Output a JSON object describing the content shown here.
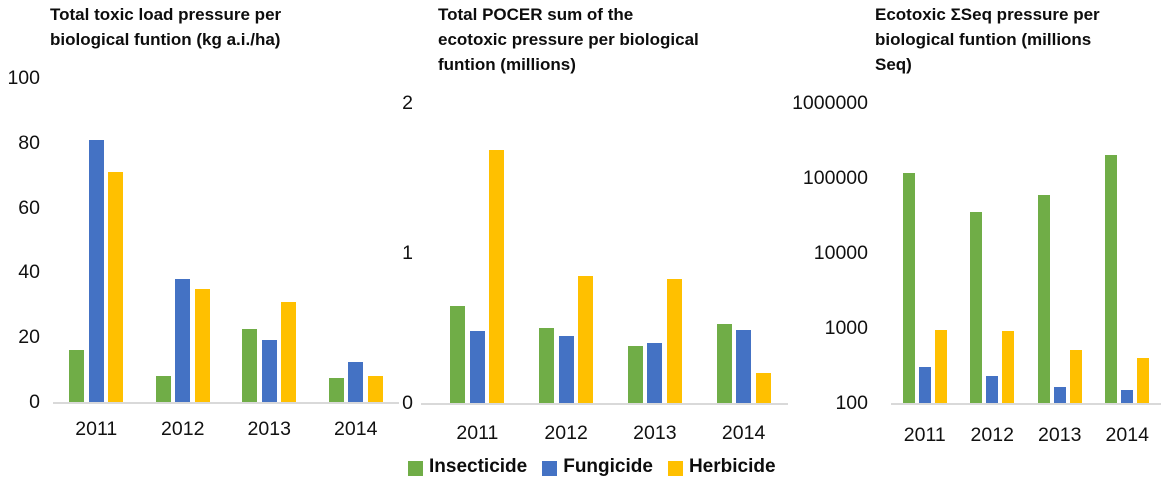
{
  "figure": {
    "background": "#ffffff",
    "text_color": "#111111",
    "axis_line_color": "#d9d9d9"
  },
  "legend": {
    "position": "bottom-center",
    "items": [
      {
        "label": "Insecticide",
        "color": "#70AD47"
      },
      {
        "label": "Fungicide",
        "color": "#4472C4"
      },
      {
        "label": "Herbicide",
        "color": "#FFC000"
      }
    ]
  },
  "chart_data": [
    {
      "type": "bar",
      "title": "Total toxic load pressure per\nbiological funtion (kg a.i./ha)",
      "categories": [
        "2011",
        "2012",
        "2013",
        "2014"
      ],
      "series": [
        {
          "name": "Insecticide",
          "color": "#70AD47",
          "values": [
            16,
            8,
            22.5,
            7.5
          ]
        },
        {
          "name": "Fungicide",
          "color": "#4472C4",
          "values": [
            81,
            38,
            19,
            12.5
          ]
        },
        {
          "name": "Herbicide",
          "color": "#FFC000",
          "values": [
            71,
            35,
            31,
            8
          ]
        }
      ],
      "y_scale": "linear",
      "ylim": [
        0,
        100
      ],
      "y_ticks": [
        0,
        20,
        40,
        60,
        80,
        100
      ],
      "grid": false,
      "xlabel": "",
      "ylabel": ""
    },
    {
      "type": "bar",
      "title": "Total POCER sum of the\necotoxic pressure per biological\nfuntion (millions)",
      "categories": [
        "2011",
        "2012",
        "2013",
        "2014"
      ],
      "series": [
        {
          "name": "Insecticide",
          "color": "#70AD47",
          "values": [
            0.65,
            0.5,
            0.38,
            0.53
          ]
        },
        {
          "name": "Fungicide",
          "color": "#4472C4",
          "values": [
            0.48,
            0.45,
            0.4,
            0.49
          ]
        },
        {
          "name": "Herbicide",
          "color": "#FFC000",
          "values": [
            1.69,
            0.85,
            0.83,
            0.2
          ]
        }
      ],
      "y_scale": "linear",
      "ylim": [
        0,
        2
      ],
      "y_ticks": [
        0,
        1,
        2
      ],
      "grid": false,
      "xlabel": "",
      "ylabel": ""
    },
    {
      "type": "bar",
      "title": "Ecotoxic ΣSeq pressure per\nbiological funtion (millions\nSeq)",
      "categories": [
        "2011",
        "2012",
        "2013",
        "2014"
      ],
      "series": [
        {
          "name": "Insecticide",
          "color": "#70AD47",
          "values": [
            115000,
            35000,
            60000,
            200000
          ]
        },
        {
          "name": "Fungicide",
          "color": "#4472C4",
          "values": [
            300,
            230,
            165,
            150
          ]
        },
        {
          "name": "Herbicide",
          "color": "#FFC000",
          "values": [
            950,
            900,
            510,
            400
          ]
        }
      ],
      "y_scale": "log",
      "ylim": [
        100,
        1000000
      ],
      "y_ticks": [
        100,
        1000,
        10000,
        100000,
        1000000
      ],
      "grid": false,
      "xlabel": "",
      "ylabel": ""
    }
  ]
}
